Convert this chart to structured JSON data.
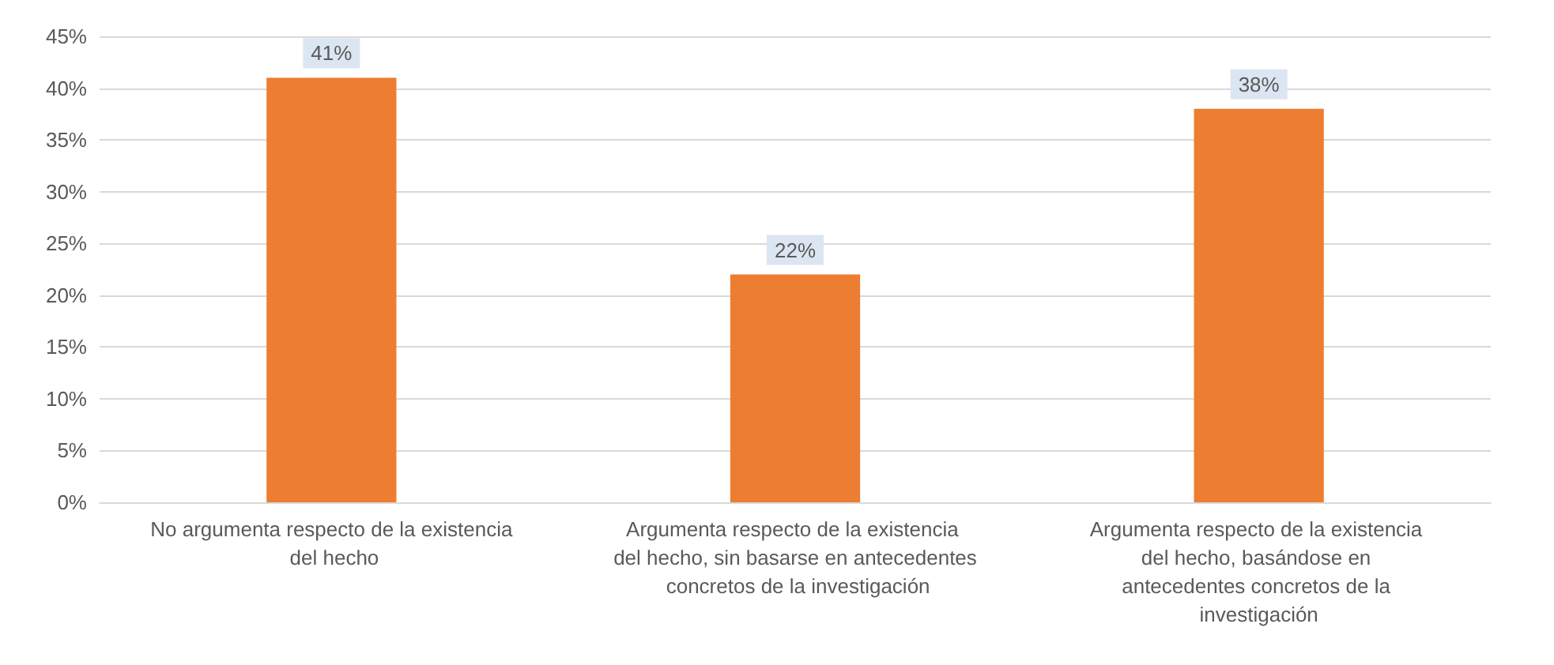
{
  "chart_data": {
    "type": "bar",
    "categories": [
      "No argumenta respecto de la existencia del hecho",
      "Argumenta respecto de la existencia del hecho, sin basarse en antecedentes concretos de la investigación",
      "Argumenta respecto de la existencia del hecho, basándose en antecedentes concretos de la investigación"
    ],
    "values": [
      41,
      22,
      38
    ],
    "value_labels": [
      "41%",
      "22%",
      "38%"
    ],
    "color": "#ed7d31",
    "ylim": [
      0,
      45
    ],
    "yticks": [
      {
        "value": 0,
        "label": "0%"
      },
      {
        "value": 5,
        "label": "5%"
      },
      {
        "value": 10,
        "label": "10%"
      },
      {
        "value": 15,
        "label": "15%"
      },
      {
        "value": 20,
        "label": "20%"
      },
      {
        "value": 25,
        "label": "25%"
      },
      {
        "value": 30,
        "label": "30%"
      },
      {
        "value": 35,
        "label": "35%"
      },
      {
        "value": 40,
        "label": "40%"
      },
      {
        "value": 45,
        "label": "45%"
      }
    ],
    "grid": "y"
  }
}
